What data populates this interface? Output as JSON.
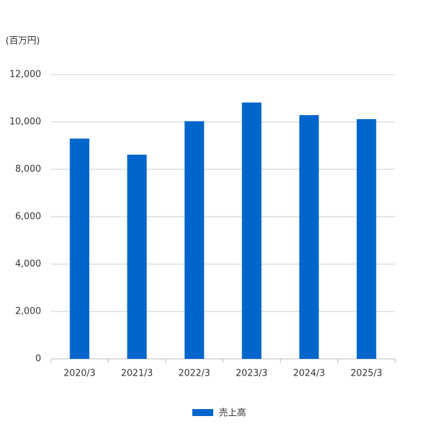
{
  "chart_data": {
    "type": "bar",
    "y_axis_label": "(百万円)",
    "categories": [
      "2020/3",
      "2021/3",
      "2022/3",
      "2023/3",
      "2024/3",
      "2025/3"
    ],
    "series": [
      {
        "name": "売上高",
        "color": "#0066cc",
        "values": [
          9300,
          8620,
          10030,
          10820,
          10290,
          10120
        ]
      }
    ],
    "ylim": [
      0,
      12000
    ],
    "yticks": [
      0,
      {
        "value": 2000,
        "label": "2,000"
      },
      {
        "value": 4000,
        "label": "4,000"
      },
      {
        "value": 6000,
        "label": "6,000"
      },
      {
        "value": 8000,
        "label": "8,000"
      },
      {
        "value": 10000,
        "label": "10,000"
      },
      {
        "value": 12000,
        "label": "12,000"
      }
    ],
    "grid": true,
    "legend": "bottom"
  }
}
